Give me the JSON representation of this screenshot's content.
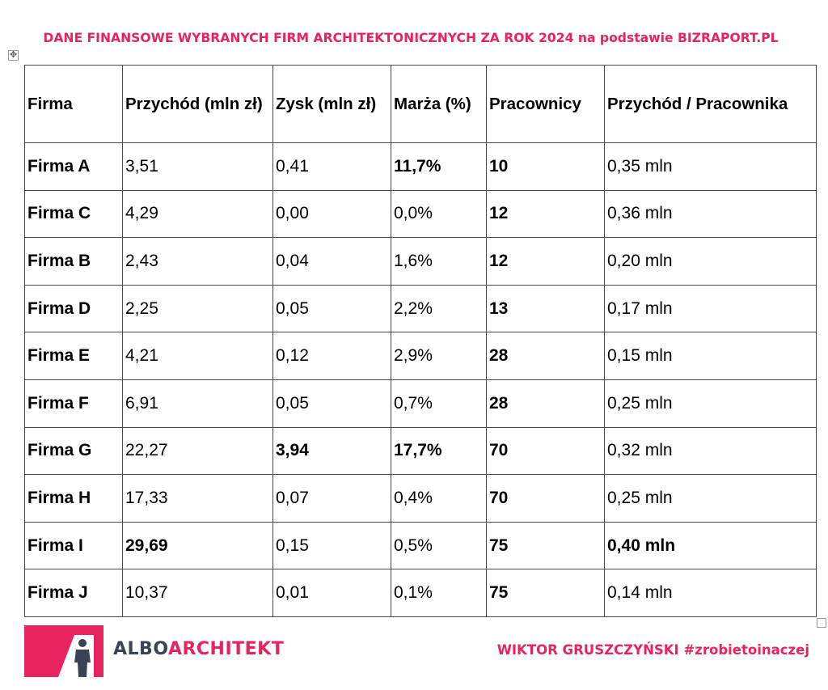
{
  "header": {
    "title": "DANE FINANSOWE WYBRANYCH FIRM ARCHITEKTONICZNYCH ZA ROK 2024 na podstawie BIZRAPORT.PL"
  },
  "table": {
    "columns": [
      "Firma",
      "Przychód (mln zł)",
      "Zysk (mln zł)",
      "Marża (%)",
      "Pracownicy",
      "Przychód / Pracownika"
    ],
    "rows": [
      [
        "Firma A",
        "3,51",
        "0,41",
        "11,7%",
        "10",
        "0,35 mln"
      ],
      [
        "Firma C",
        "4,29",
        "0,00",
        "0,0%",
        "12",
        "0,36 mln"
      ],
      [
        "Firma B",
        "2,43",
        "0,04",
        "1,6%",
        "12",
        "0,20 mln"
      ],
      [
        "Firma D",
        "2,25",
        "0,05",
        "2,2%",
        "13",
        "0,17 mln"
      ],
      [
        "Firma E",
        "4,21",
        "0,12",
        "2,9%",
        "28",
        "0,15 mln"
      ],
      [
        "Firma F",
        "6,91",
        "0,05",
        "0,7%",
        "28",
        "0,25 mln"
      ],
      [
        "Firma G",
        "22,27",
        "3,94",
        "17,7%",
        "70",
        "0,32 mln"
      ],
      [
        "Firma H",
        "17,33",
        "0,07",
        "0,4%",
        "70",
        "0,25 mln"
      ],
      [
        "Firma I",
        "29,69",
        "0,15",
        "0,5%",
        "75",
        "0,40 mln"
      ],
      [
        "Firma J",
        "10,37",
        "0,01",
        "0,1%",
        "75",
        "0,14 mln"
      ]
    ]
  },
  "footer": {
    "logo_part1": "ALBO",
    "logo_part2": "ARCHITEKT",
    "author": "WIKTOR GRUSZCZYŃSKI #zrobietoinaczej"
  },
  "colors": {
    "accent": "#e8245f",
    "logo_dark": "#3a4255",
    "border": "#4a4a4a"
  },
  "icons": {
    "table_move_handle": "move-icon",
    "logo_mark": "architect-figure-logo"
  }
}
